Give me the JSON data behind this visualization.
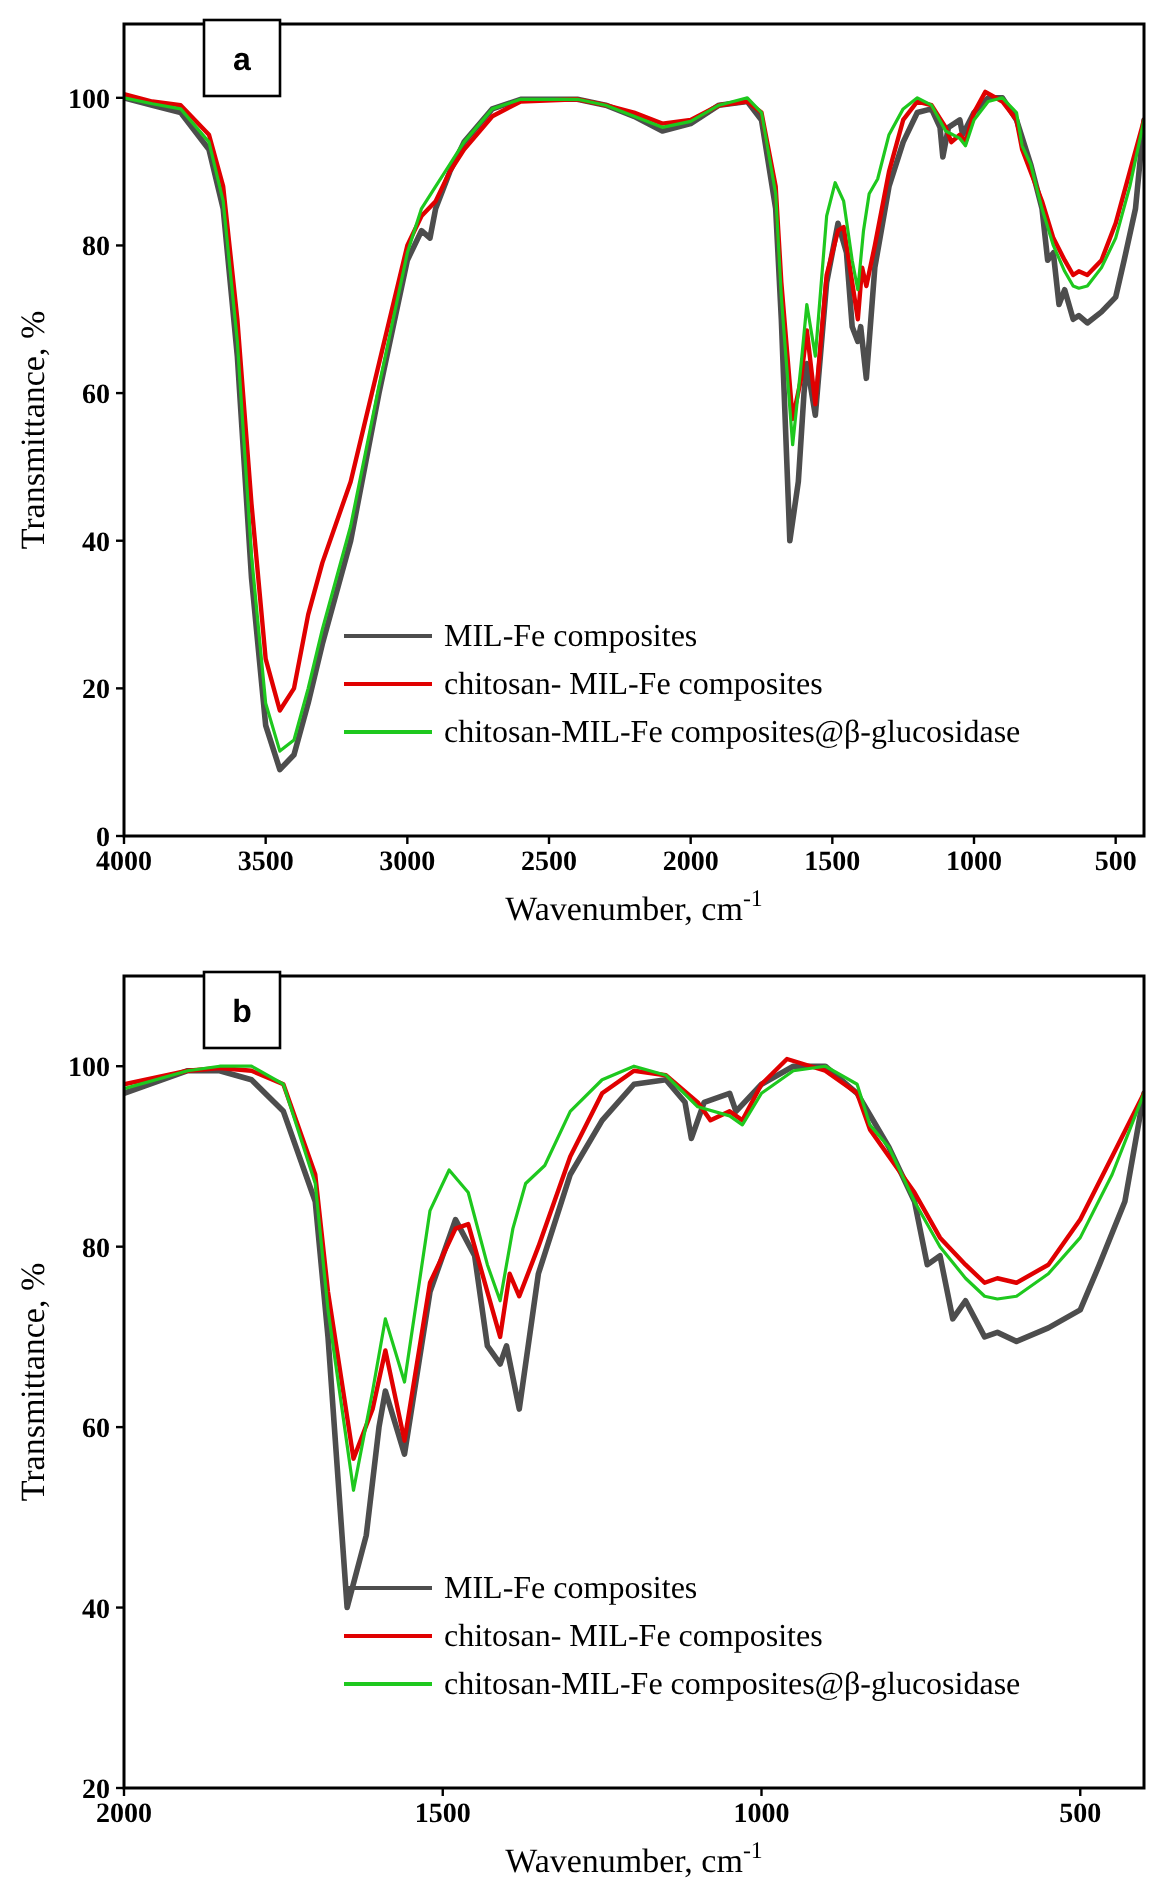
{
  "chart_data": [
    {
      "type": "line",
      "xlabel": "Wavenumber, cm$^{-1}$",
      "ylabel": "Transmittance, %",
      "annotations": [
        "a"
      ],
      "legend": "bottom right",
      "xlim": [
        4000,
        400
      ],
      "ylim": [
        0,
        110
      ],
      "xticks": [
        4000,
        3500,
        3000,
        2500,
        2000,
        1500,
        1000,
        500
      ],
      "yticks": [
        0,
        20,
        40,
        60,
        80,
        100
      ],
      "series": [
        {
          "name": "MIL-Fe composites",
          "color": "#4d4d4d",
          "x": [
            4000,
            3900,
            3800,
            3700,
            3650,
            3600,
            3550,
            3500,
            3450,
            3400,
            3350,
            3300,
            3200,
            3100,
            3000,
            2950,
            2920,
            2900,
            2850,
            2800,
            2700,
            2600,
            2400,
            2300,
            2200,
            2100,
            2000,
            1900,
            1800,
            1750,
            1700,
            1680,
            1650,
            1620,
            1600,
            1590,
            1560,
            1520,
            1480,
            1450,
            1430,
            1410,
            1400,
            1380,
            1350,
            1300,
            1250,
            1200,
            1150,
            1120,
            1110,
            1090,
            1050,
            1040,
            1000,
            950,
            900,
            850,
            800,
            760,
            740,
            720,
            700,
            680,
            650,
            630,
            600,
            550,
            500,
            470,
            430,
            400
          ],
          "values": [
            100,
            99,
            98,
            93,
            85,
            65,
            35,
            15,
            9,
            11,
            18,
            26,
            40,
            60,
            78,
            82,
            81,
            85,
            90,
            94,
            98.5,
            99.8,
            99.8,
            99,
            97.5,
            95.5,
            96.5,
            99,
            99.5,
            97,
            85,
            70,
            40,
            48,
            60,
            64,
            57,
            75,
            83,
            79,
            69,
            67,
            69,
            62,
            77,
            88,
            94,
            98,
            98.5,
            96,
            92,
            96,
            97,
            95,
            98,
            100,
            100,
            97,
            91,
            85,
            78,
            79,
            72,
            74,
            70,
            70.5,
            69.5,
            71,
            73,
            78,
            85,
            97
          ]
        },
        {
          "name": "chitosan- MIL-Fe composites",
          "color": "#e00000",
          "x": [
            4000,
            3900,
            3800,
            3700,
            3650,
            3600,
            3550,
            3500,
            3450,
            3400,
            3350,
            3300,
            3200,
            3100,
            3000,
            2950,
            2900,
            2850,
            2800,
            2700,
            2600,
            2400,
            2300,
            2200,
            2100,
            2000,
            1900,
            1800,
            1750,
            1700,
            1680,
            1640,
            1610,
            1590,
            1560,
            1520,
            1480,
            1460,
            1430,
            1410,
            1395,
            1380,
            1350,
            1300,
            1250,
            1200,
            1150,
            1100,
            1080,
            1050,
            1030,
            1000,
            960,
            900,
            850,
            830,
            800,
            760,
            720,
            680,
            650,
            630,
            600,
            550,
            500,
            450,
            400
          ],
          "values": [
            100.5,
            99.5,
            99,
            95,
            88,
            70,
            45,
            24,
            17,
            20,
            30,
            37,
            48,
            64,
            80,
            84,
            86,
            90,
            93,
            97.5,
            99.5,
            99.8,
            99,
            98,
            96.5,
            97,
            99,
            99.5,
            98,
            88,
            75,
            56.5,
            62,
            68.5,
            58.5,
            76,
            82,
            82.5,
            75,
            70,
            77,
            74.5,
            80,
            90,
            97,
            99.5,
            99,
            96,
            94,
            95,
            94,
            98,
            100.8,
            99.5,
            97,
            93,
            90,
            86,
            81,
            78,
            76,
            76.5,
            76,
            78,
            83,
            90,
            97
          ]
        },
        {
          "name": "chitosan-MIL-Fe composites@β-glucosidase",
          "color": "#1ec81e",
          "x": [
            4000,
            3900,
            3800,
            3700,
            3650,
            3600,
            3550,
            3500,
            3450,
            3400,
            3350,
            3300,
            3200,
            3100,
            3000,
            2950,
            2900,
            2850,
            2800,
            2700,
            2600,
            2400,
            2300,
            2200,
            2100,
            2000,
            1900,
            1800,
            1750,
            1700,
            1680,
            1640,
            1610,
            1590,
            1560,
            1520,
            1490,
            1460,
            1430,
            1410,
            1390,
            1370,
            1340,
            1300,
            1250,
            1200,
            1150,
            1100,
            1050,
            1030,
            1000,
            950,
            900,
            850,
            830,
            800,
            760,
            720,
            680,
            650,
            630,
            600,
            550,
            500,
            450,
            400
          ],
          "values": [
            100,
            99.2,
            98.5,
            94,
            86,
            67,
            38,
            18,
            11.5,
            13,
            20,
            28,
            42,
            61,
            79,
            85,
            88,
            91,
            94,
            98.5,
            99.8,
            99.8,
            99,
            97.5,
            96,
            96.8,
            99,
            100,
            98,
            87,
            73,
            53,
            64,
            72,
            65,
            84,
            88.5,
            86,
            78,
            74,
            82,
            87,
            89,
            95,
            98.5,
            100,
            99,
            95.5,
            94.5,
            93.5,
            97,
            99.5,
            100,
            98,
            93.5,
            91,
            85,
            80,
            76.5,
            74.5,
            74.2,
            74.5,
            77,
            81,
            88,
            97
          ]
        }
      ]
    },
    {
      "type": "line",
      "xlabel": "Wavenumber, cm$^{-1}$",
      "ylabel": "Transmittance, %",
      "annotations": [
        "b"
      ],
      "legend": "bottom right",
      "xlim": [
        2000,
        400
      ],
      "ylim": [
        20,
        110
      ],
      "xticks": [
        2000,
        1500,
        1000,
        500
      ],
      "yticks": [
        20,
        40,
        60,
        80,
        100
      ],
      "series": [
        {
          "name": "MIL-Fe composites",
          "color": "#4d4d4d",
          "x": [
            2000,
            1900,
            1850,
            1800,
            1750,
            1700,
            1680,
            1650,
            1620,
            1600,
            1590,
            1560,
            1520,
            1480,
            1450,
            1430,
            1410,
            1400,
            1380,
            1350,
            1300,
            1250,
            1200,
            1150,
            1120,
            1110,
            1090,
            1050,
            1040,
            1000,
            950,
            900,
            850,
            800,
            760,
            740,
            720,
            700,
            680,
            650,
            630,
            600,
            550,
            500,
            470,
            430,
            400
          ],
          "values": [
            97,
            99.5,
            99.5,
            98.5,
            95,
            85,
            70,
            40,
            48,
            60,
            64,
            57,
            75,
            83,
            79,
            69,
            67,
            69,
            62,
            77,
            88,
            94,
            98,
            98.5,
            96,
            92,
            96,
            97,
            95,
            98,
            100,
            100,
            97,
            91,
            85,
            78,
            79,
            72,
            74,
            70,
            70.5,
            69.5,
            71,
            73,
            78,
            85,
            97
          ]
        },
        {
          "name": "chitosan- MIL-Fe composites",
          "color": "#e00000",
          "x": [
            2000,
            1900,
            1850,
            1800,
            1750,
            1700,
            1680,
            1640,
            1610,
            1590,
            1560,
            1520,
            1480,
            1460,
            1430,
            1410,
            1395,
            1380,
            1350,
            1300,
            1250,
            1200,
            1150,
            1100,
            1080,
            1050,
            1030,
            1000,
            960,
            900,
            850,
            830,
            800,
            760,
            720,
            680,
            650,
            630,
            600,
            550,
            500,
            450,
            400
          ],
          "values": [
            98,
            99.5,
            99.8,
            99.5,
            98,
            88,
            75,
            56.5,
            62,
            68.5,
            58.5,
            76,
            82,
            82.5,
            75,
            70,
            77,
            74.5,
            80,
            90,
            97,
            99.5,
            99,
            96,
            94,
            95,
            94,
            98,
            100.8,
            99.5,
            97,
            93,
            90,
            86,
            81,
            78,
            76,
            76.5,
            76,
            78,
            83,
            90,
            97
          ]
        },
        {
          "name": "chitosan-MIL-Fe composites@β-glucosidase",
          "color": "#1ec81e",
          "x": [
            2000,
            1900,
            1850,
            1800,
            1750,
            1700,
            1680,
            1640,
            1610,
            1590,
            1560,
            1520,
            1490,
            1460,
            1430,
            1410,
            1390,
            1370,
            1340,
            1300,
            1250,
            1200,
            1150,
            1100,
            1050,
            1030,
            1000,
            950,
            900,
            850,
            830,
            800,
            760,
            720,
            680,
            650,
            630,
            600,
            550,
            500,
            450,
            400
          ],
          "values": [
            97.5,
            99.5,
            100,
            100,
            98,
            87,
            73,
            53,
            64,
            72,
            65,
            84,
            88.5,
            86,
            78,
            74,
            82,
            87,
            89,
            95,
            98.5,
            100,
            99,
            95.5,
            94.5,
            93.5,
            97,
            99.5,
            100,
            98,
            93.5,
            91,
            85,
            80,
            76.5,
            74.5,
            74.2,
            74.5,
            77,
            81,
            88,
            97
          ]
        }
      ]
    }
  ]
}
